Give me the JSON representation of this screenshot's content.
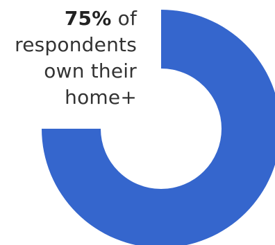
{
  "chart_data": {
    "type": "pie",
    "variant": "donut",
    "categories": [
      "own their home+"
    ],
    "values": [
      75
    ],
    "unit": "%",
    "title": "",
    "annotation": {
      "value_text": "75%",
      "line1_rest": "of",
      "line2": "respondents",
      "line3": "own their",
      "line4": "home+"
    },
    "colors": {
      "filled": "#3566CD",
      "background": "#FFFFFF"
    }
  }
}
